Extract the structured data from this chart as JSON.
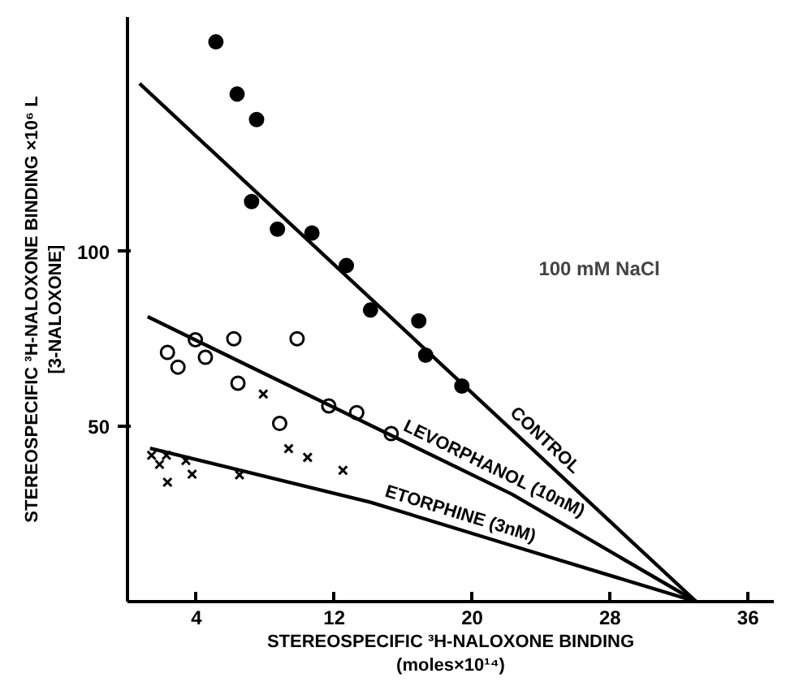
{
  "chart_data": {
    "type": "scatter",
    "xlabel": "STEREOSPECIFIC ³H-NALOXONE BINDING\n(moles×10¹⁴)",
    "ylabel": "STEREOSPECIFIC ³H-NALOXONE BINDING ×10⁶ L\n[3-NALOXONE]",
    "xlim": [
      0,
      37.5
    ],
    "ylim": [
      0,
      167
    ],
    "xticks": [
      4,
      12,
      20,
      28,
      36
    ],
    "yticks": [
      50,
      100
    ],
    "grid": false,
    "series": [
      {
        "marker": "circle",
        "color": "#000000",
        "x": [
          5.13,
          6.36,
          7.49,
          7.2,
          8.7,
          10.7,
          12.7,
          14.1,
          16.9,
          17.3,
          19.4
        ],
        "values": [
          159.9,
          145,
          137.7,
          114.3,
          106.4,
          105.3,
          96,
          83.3,
          80.2,
          70.4,
          61.6
        ]
      },
      {
        "marker": "open_circle",
        "color": "#000000",
        "x": [
          2.32,
          2.93,
          3.94,
          4.52,
          6.17,
          6.41,
          9.84,
          8.83,
          11.68,
          13.3,
          15.3
        ],
        "values": [
          71.2,
          67,
          74.8,
          69.8,
          75.1,
          62.4,
          75.1,
          50.9,
          55.9,
          54,
          48
        ]
      },
      {
        "marker": "x",
        "color": "#000000",
        "x": [
          1.4,
          1.86,
          2.32,
          2.26,
          3.39,
          3.75,
          6.5,
          7.88,
          9.35,
          10.45,
          12.5
        ],
        "values": [
          41.8,
          39.2,
          34.1,
          41.8,
          40.3,
          36.4,
          36.2,
          59.3,
          43.7,
          41.2,
          37.5
        ]
      },
      {
        "type": "line",
        "name": "CONTROL",
        "color": "#000000",
        "x": [
          0.7,
          33
        ],
        "values": [
          148,
          0
        ]
      },
      {
        "type": "line",
        "name": "LEVORPHANOL (10nM)",
        "color": "#000000",
        "x": [
          1.17,
          22.3,
          33
        ],
        "values": [
          81.4,
          30.7,
          0
        ]
      },
      {
        "type": "line",
        "name": "ETORPHINE (3nM)",
        "color": "#000000",
        "x": [
          1.31,
          14.1,
          22.3,
          33
        ],
        "values": [
          43.8,
          28.4,
          16,
          0
        ]
      }
    ],
    "annotations": [
      "100 mM NaCl"
    ]
  }
}
